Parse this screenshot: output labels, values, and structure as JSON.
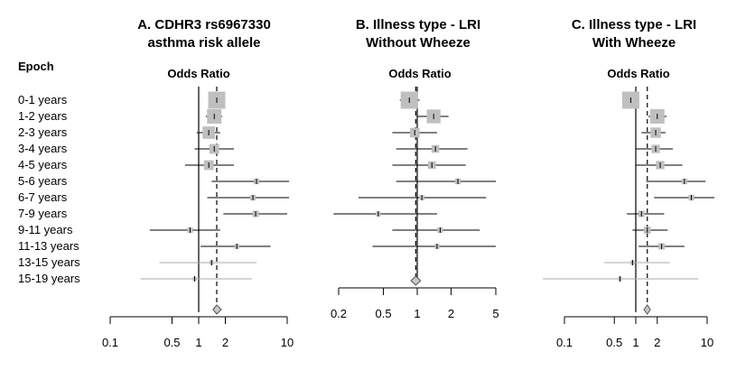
{
  "epoch_heading": "Epoch",
  "rows": [
    "0-1 years",
    "1-2 years",
    "2-3 years",
    "3-4 years",
    "4-5 years",
    "5-6 years",
    "6-7 years",
    "7-9 years",
    "9-11 years",
    "11-13 years",
    "13-15 years",
    "15-19 years"
  ],
  "panels": [
    {
      "title_line1": "A. CDHR3 rs6967330",
      "title_line2": "asthma risk allele",
      "or_label": "Odds Ratio"
    },
    {
      "title_line1": "B. Illness type - LRI",
      "title_line2": "Without Wheeze",
      "or_label": "Odds Ratio"
    },
    {
      "title_line1": "C. Illness type - LRI",
      "title_line2": "With Wheeze",
      "or_label": "Odds Ratio"
    }
  ],
  "chart_data": [
    {
      "type": "forest",
      "title": "A. CDHR3 rs6967330 asthma risk allele",
      "xlabel": "Odds Ratio",
      "xscale": "log",
      "xlim": [
        0.1,
        10
      ],
      "ticks": [
        0.1,
        0.5,
        1,
        2,
        10
      ],
      "tick_labels": [
        "0.1",
        "0.5",
        "1",
        "2",
        "10"
      ],
      "reference": 1,
      "overall": {
        "or": 1.6,
        "lo": 1.45,
        "hi": 1.8
      },
      "points": [
        {
          "label": "0-1 years",
          "or": 1.6,
          "lo": 1.3,
          "hi": 1.9,
          "weight": 1.0
        },
        {
          "label": "1-2 years",
          "or": 1.5,
          "lo": 1.2,
          "hi": 1.85,
          "weight": 0.8
        },
        {
          "label": "2-3 years",
          "or": 1.3,
          "lo": 0.95,
          "hi": 1.75,
          "weight": 0.65
        },
        {
          "label": "3-4 years",
          "or": 1.5,
          "lo": 0.9,
          "hi": 2.5,
          "weight": 0.45
        },
        {
          "label": "4-5 years",
          "or": 1.3,
          "lo": 0.7,
          "hi": 2.5,
          "weight": 0.45
        },
        {
          "label": "5-6 years",
          "or": 4.5,
          "lo": 1.4,
          "hi": 10.5,
          "weight": 0.15
        },
        {
          "label": "6-7 years",
          "or": 4.1,
          "lo": 1.25,
          "hi": 10.5,
          "weight": 0.15
        },
        {
          "label": "7-9 years",
          "or": 4.4,
          "lo": 1.9,
          "hi": 10.0,
          "weight": 0.2
        },
        {
          "label": "9-11 years",
          "or": 0.8,
          "lo": 0.28,
          "hi": 1.75,
          "weight": 0.15
        },
        {
          "label": "11-13 years",
          "or": 2.7,
          "lo": 1.05,
          "hi": 6.5,
          "weight": 0.1
        },
        {
          "label": "13-15 years",
          "or": 1.4,
          "lo": 0.36,
          "hi": 4.5,
          "weight": 0.05
        },
        {
          "label": "15-19 years",
          "or": 0.9,
          "lo": 0.22,
          "hi": 4.0,
          "weight": 0.03
        }
      ]
    },
    {
      "type": "forest",
      "title": "B. Illness type - LRI Without Wheeze",
      "xlabel": "Odds Ratio",
      "xscale": "log",
      "xlim": [
        0.2,
        5
      ],
      "ticks": [
        0.2,
        0.5,
        1,
        2,
        5
      ],
      "tick_labels": [
        "0.2",
        "0.5",
        "1",
        "2",
        "5"
      ],
      "reference": 1,
      "overall": {
        "or": 0.97,
        "lo": 0.88,
        "hi": 1.07
      },
      "points": [
        {
          "label": "0-1 years",
          "or": 0.85,
          "lo": 0.7,
          "hi": 1.05,
          "weight": 1.0
        },
        {
          "label": "1-2 years",
          "or": 1.4,
          "lo": 1.0,
          "hi": 1.9,
          "weight": 0.75
        },
        {
          "label": "2-3 years",
          "or": 0.95,
          "lo": 0.6,
          "hi": 1.5,
          "weight": 0.45
        },
        {
          "label": "3-4 years",
          "or": 1.45,
          "lo": 0.65,
          "hi": 2.8,
          "weight": 0.3
        },
        {
          "label": "4-5 years",
          "or": 1.35,
          "lo": 0.6,
          "hi": 2.7,
          "weight": 0.3
        },
        {
          "label": "5-6 years",
          "or": 2.3,
          "lo": 0.65,
          "hi": 5.0,
          "weight": 0.15
        },
        {
          "label": "6-7 years",
          "or": 1.1,
          "lo": 0.3,
          "hi": 4.1,
          "weight": 0.1
        },
        {
          "label": "7-9 years",
          "or": 0.45,
          "lo": 0.18,
          "hi": 1.5,
          "weight": 0.1
        },
        {
          "label": "9-11 years",
          "or": 1.6,
          "lo": 0.6,
          "hi": 3.6,
          "weight": 0.15
        },
        {
          "label": "11-13 years",
          "or": 1.5,
          "lo": 0.4,
          "hi": 5.0,
          "weight": 0.1
        },
        {
          "label": "13-15 years",
          "or": null,
          "lo": null,
          "hi": null,
          "weight": 0
        },
        {
          "label": "15-19 years",
          "or": null,
          "lo": null,
          "hi": null,
          "weight": 0
        }
      ]
    },
    {
      "type": "forest",
      "title": "C. Illness type - LRI With Wheeze",
      "xlabel": "Odds Ratio",
      "xscale": "log",
      "xlim": [
        0.1,
        10
      ],
      "ticks": [
        0.1,
        0.5,
        1,
        2,
        10
      ],
      "tick_labels": [
        "0.1",
        "0.5",
        "1",
        "2",
        "10"
      ],
      "reference": 1,
      "overall": {
        "or": 1.45,
        "lo": 1.3,
        "hi": 1.6
      },
      "points": [
        {
          "label": "0-1 years",
          "or": 0.85,
          "lo": 0.68,
          "hi": 1.05,
          "weight": 1.0
        },
        {
          "label": "1-2 years",
          "or": 2.0,
          "lo": 1.5,
          "hi": 2.7,
          "weight": 0.8
        },
        {
          "label": "2-3 years",
          "or": 1.9,
          "lo": 1.2,
          "hi": 2.6,
          "weight": 0.5
        },
        {
          "label": "3-4 years",
          "or": 1.9,
          "lo": 1.0,
          "hi": 3.3,
          "weight": 0.35
        },
        {
          "label": "4-5 years",
          "or": 2.2,
          "lo": 1.0,
          "hi": 4.5,
          "weight": 0.35
        },
        {
          "label": "5-6 years",
          "or": 4.8,
          "lo": 1.4,
          "hi": 9.5,
          "weight": 0.15
        },
        {
          "label": "6-7 years",
          "or": 6.0,
          "lo": 1.8,
          "hi": 13.0,
          "weight": 0.15
        },
        {
          "label": "7-9 years",
          "or": 1.2,
          "lo": 0.75,
          "hi": 2.5,
          "weight": 0.2
        },
        {
          "label": "9-11 years",
          "or": 1.45,
          "lo": 0.9,
          "hi": 2.8,
          "weight": 0.25
        },
        {
          "label": "11-13 years",
          "or": 2.3,
          "lo": 1.1,
          "hi": 4.8,
          "weight": 0.2
        },
        {
          "label": "13-15 years",
          "or": 0.9,
          "lo": 0.36,
          "hi": 3.0,
          "weight": 0.05
        },
        {
          "label": "15-19 years",
          "or": 0.6,
          "lo": 0.05,
          "hi": 7.5,
          "weight": 0.03
        }
      ]
    }
  ]
}
